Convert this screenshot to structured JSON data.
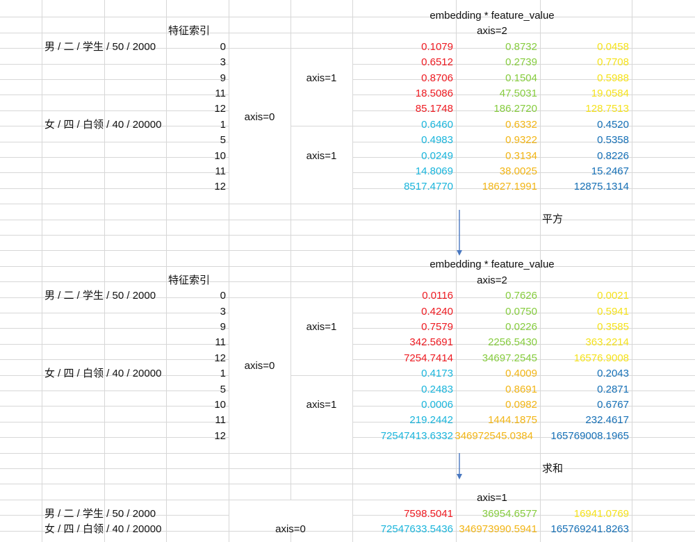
{
  "colors": {
    "red": "#ee1b22",
    "green": "#86cc3e",
    "yellow": "#f5e21c",
    "cyan": "#1ab5dc",
    "orange": "#f2b515",
    "blue": "#1670b6",
    "grid": "#d7d7d7",
    "arrow": "#4a78c0"
  },
  "labels": {
    "header_expr": "embedding * feature_value",
    "axis2": "axis=2",
    "axis1": "axis=1",
    "axis0": "axis=0",
    "feature_index": "特征索引",
    "square_note": "平方",
    "sum_note": "求和"
  },
  "samples": {
    "male": "男 / 二 / 学生 / 50 / 2000",
    "female": "女 / 四 / 白领 / 40 / 20000"
  },
  "block1": {
    "rows": [
      {
        "index": "0",
        "v": [
          "0.1079",
          "0.8732",
          "0.0458"
        ]
      },
      {
        "index": "3",
        "v": [
          "0.6512",
          "0.2739",
          "0.7708"
        ]
      },
      {
        "index": "9",
        "v": [
          "0.8706",
          "0.1504",
          "0.5988"
        ]
      },
      {
        "index": "11",
        "v": [
          "18.5086",
          "47.5031",
          "19.0584"
        ]
      },
      {
        "index": "12",
        "v": [
          "85.1748",
          "186.2720",
          "128.7513"
        ]
      },
      {
        "index": "1",
        "v": [
          "0.6460",
          "0.6332",
          "0.4520"
        ]
      },
      {
        "index": "5",
        "v": [
          "0.4983",
          "0.9322",
          "0.5358"
        ]
      },
      {
        "index": "10",
        "v": [
          "0.0249",
          "0.3134",
          "0.8226"
        ]
      },
      {
        "index": "11",
        "v": [
          "14.8069",
          "38.0025",
          "15.2467"
        ]
      },
      {
        "index": "12",
        "v": [
          "8517.4770",
          "18627.1991",
          "12875.1314"
        ]
      }
    ]
  },
  "block2": {
    "rows": [
      {
        "index": "0",
        "v": [
          "0.0116",
          "0.7626",
          "0.0021"
        ]
      },
      {
        "index": "3",
        "v": [
          "0.4240",
          "0.0750",
          "0.5941"
        ]
      },
      {
        "index": "9",
        "v": [
          "0.7579",
          "0.0226",
          "0.3585"
        ]
      },
      {
        "index": "11",
        "v": [
          "342.5691",
          "2256.5430",
          "363.2214"
        ]
      },
      {
        "index": "12",
        "v": [
          "7254.7414",
          "34697.2545",
          "16576.9008"
        ]
      },
      {
        "index": "1",
        "v": [
          "0.4173",
          "0.4009",
          "0.2043"
        ]
      },
      {
        "index": "5",
        "v": [
          "0.2483",
          "0.8691",
          "0.2871"
        ]
      },
      {
        "index": "10",
        "v": [
          "0.0006",
          "0.0982",
          "0.6767"
        ]
      },
      {
        "index": "11",
        "v": [
          "219.2442",
          "1444.1875",
          "232.4617"
        ]
      },
      {
        "index": "12",
        "v": [
          "72547413.6332",
          "346972545.0384",
          "165769008.1965"
        ]
      }
    ]
  },
  "sums": {
    "male": [
      "7598.5041",
      "36954.6577",
      "16941.0769"
    ],
    "female": [
      "72547633.5436",
      "346973990.5941",
      "165769241.8263"
    ]
  }
}
